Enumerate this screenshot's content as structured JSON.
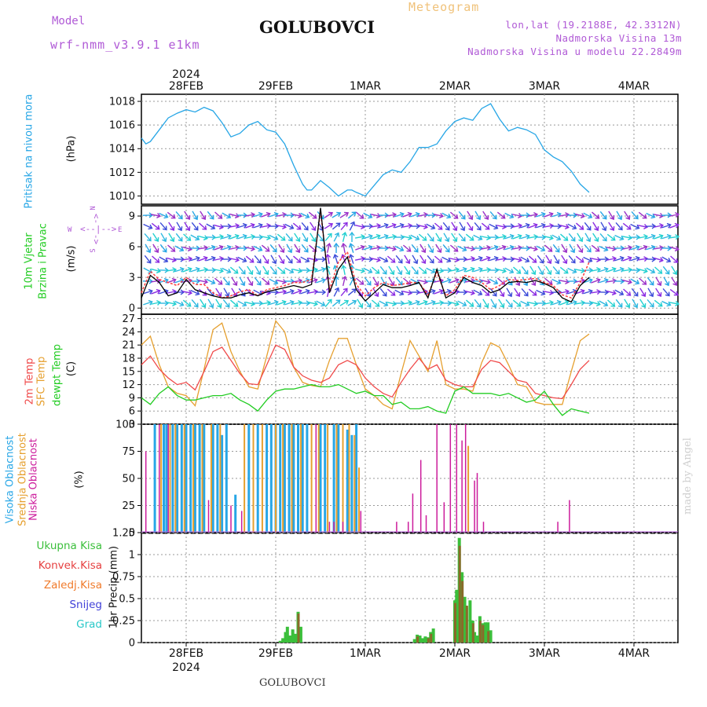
{
  "header": {
    "model_label": "Model",
    "model_run": "wrf-nmm_v3.9.1 e1km",
    "station": "GOLUBOVCI",
    "product": "Meteogram",
    "coords": "lon,lat (19.2188E, 42.3312N)",
    "elevation": "Nadmorska Visina 13m",
    "model_elevation": "Nadmorska Visina u modelu 22.2849m"
  },
  "footer": {
    "station": "GOLUBOVCI",
    "credit": "made by Angel"
  },
  "colors": {
    "pressure": "#27a6e6",
    "wind_speed": "#000000",
    "wind_gust": "#ff3e3e",
    "temp_2m": "#f04a4a",
    "temp_sfc": "#e6a02f",
    "dewpoint": "#22cc22",
    "cloud_high": "#27a6e6",
    "cloud_mid": "#e6a02f",
    "cloud_low": "#cc1c9c",
    "precip_total": "#3bbf3b",
    "precip_conv": "#e64040",
    "precip_frozen": "#f07a2a",
    "snow": "#4040d8",
    "graupel": "#28c8c8"
  },
  "chart_data": [
    {
      "type": "line",
      "panel": "pressure",
      "labels": {
        "name": "Pritisak na nivou mora",
        "unit": "(hPa)"
      },
      "x_ticks": [
        "28FEB",
        "29FEB",
        "1MAR",
        "2MAR",
        "3MAR",
        "4MAR"
      ],
      "x_year": "2024",
      "ylim": [
        1009.3,
        1018.6
      ],
      "y_ticks": [
        1010,
        1012,
        1014,
        1016,
        1018
      ],
      "x": [
        -0.5,
        -0.45,
        -0.4,
        -0.3,
        -0.2,
        -0.1,
        0,
        0.1,
        0.2,
        0.3,
        0.4,
        0.5,
        0.6,
        0.7,
        0.8,
        0.9,
        1.0,
        1.1,
        1.2,
        1.3,
        1.35,
        1.4,
        1.5,
        1.6,
        1.7,
        1.8,
        1.85,
        1.9,
        2.0,
        2.1,
        2.2,
        2.3,
        2.4,
        2.5,
        2.6,
        2.7,
        2.8,
        2.9,
        3.0,
        3.1,
        3.2,
        3.3,
        3.4,
        3.5,
        3.6,
        3.7,
        3.8,
        3.9,
        4.0,
        4.1,
        4.2,
        4.3,
        4.4,
        4.5
      ],
      "series": [
        {
          "values": [
            1014.9,
            1014.4,
            1014.6,
            1015.6,
            1016.6,
            1017.0,
            1017.3,
            1017.1,
            1017.5,
            1017.2,
            1016.2,
            1015.0,
            1015.3,
            1016.0,
            1016.3,
            1015.6,
            1015.4,
            1014.4,
            1012.6,
            1011.0,
            1010.5,
            1010.5,
            1011.3,
            1010.7,
            1010.0,
            1010.5,
            1010.5,
            1010.3,
            1010.0,
            1010.9,
            1011.8,
            1012.2,
            1012.0,
            1012.9,
            1014.1,
            1014.1,
            1014.4,
            1015.5,
            1016.3,
            1016.6,
            1016.4,
            1017.4,
            1017.8,
            1016.5,
            1015.5,
            1015.8,
            1015.6,
            1015.2,
            1013.9,
            1013.3,
            1012.9,
            1012.1,
            1011.0,
            1010.3
          ]
        }
      ]
    },
    {
      "type": "line",
      "panel": "wind",
      "labels": {
        "name": "10m Vjetar",
        "name2": "Brzina i Pravac",
        "unit": "(m/s)"
      },
      "compass": {
        "n": "N",
        "s": "S",
        "e": "E",
        "w": "W"
      },
      "ylim": [
        -0.6,
        10.0
      ],
      "y_ticks": [
        0,
        3,
        6,
        9
      ],
      "x": [
        -0.5,
        -0.4,
        -0.3,
        -0.2,
        -0.1,
        0,
        0.1,
        0.2,
        0.3,
        0.4,
        0.5,
        0.6,
        0.7,
        0.8,
        0.9,
        1.0,
        1.1,
        1.2,
        1.3,
        1.4,
        1.5,
        1.6,
        1.7,
        1.8,
        1.9,
        2.0,
        2.1,
        2.2,
        2.3,
        2.4,
        2.5,
        2.6,
        2.7,
        2.8,
        2.9,
        3.0,
        3.1,
        3.2,
        3.3,
        3.4,
        3.5,
        3.6,
        3.7,
        3.8,
        3.9,
        4.0,
        4.1,
        4.2,
        4.3,
        4.4,
        4.5
      ],
      "series": [
        {
          "name": "speed",
          "values": [
            1.0,
            3.2,
            2.5,
            1.2,
            1.5,
            2.8,
            1.8,
            1.5,
            1.2,
            1.0,
            1.0,
            1.3,
            1.5,
            1.2,
            1.6,
            1.8,
            2.0,
            2.2,
            2.0,
            2.3,
            9.8,
            1.5,
            3.8,
            5.0,
            1.8,
            0.7,
            1.5,
            2.3,
            2.0,
            2.0,
            2.2,
            2.5,
            1.0,
            3.8,
            1.0,
            1.5,
            3.0,
            2.5,
            2.2,
            1.5,
            1.8,
            2.5,
            2.6,
            2.5,
            2.7,
            2.4,
            2.0,
            1.0,
            0.6,
            2.2,
            3.0
          ]
        },
        {
          "name": "gust",
          "values": [
            1.5,
            3.6,
            2.8,
            2.5,
            2.2,
            3.0,
            2.3,
            2.3,
            1.5,
            1.0,
            1.2,
            1.6,
            1.8,
            1.2,
            1.8,
            2.0,
            2.2,
            2.5,
            2.5,
            2.8,
            9.5,
            1.8,
            4.5,
            5.5,
            2.3,
            1.2,
            2.0,
            2.5,
            2.2,
            2.3,
            2.5,
            2.5,
            1.3,
            3.5,
            1.2,
            1.8,
            3.2,
            3.0,
            2.5,
            1.8,
            2.2,
            2.8,
            2.7,
            2.8,
            2.9,
            2.5,
            2.2,
            1.3,
            1.0,
            2.5,
            4.5
          ]
        }
      ]
    },
    {
      "type": "line",
      "panel": "temperature",
      "labels": {
        "t2m": "2m Temp",
        "tsfc": "SFC Temp",
        "td": "dewpt Temp",
        "unit": "(C)"
      },
      "ylim": [
        3,
        28
      ],
      "y_ticks": [
        3,
        6,
        9,
        12,
        15,
        18,
        21,
        24,
        27
      ],
      "x": [
        -0.5,
        -0.4,
        -0.3,
        -0.2,
        -0.1,
        0,
        0.1,
        0.2,
        0.3,
        0.4,
        0.5,
        0.6,
        0.7,
        0.8,
        0.9,
        1.0,
        1.1,
        1.2,
        1.3,
        1.4,
        1.5,
        1.6,
        1.7,
        1.8,
        1.9,
        2.0,
        2.1,
        2.2,
        2.3,
        2.4,
        2.5,
        2.6,
        2.7,
        2.8,
        2.9,
        3.0,
        3.1,
        3.2,
        3.3,
        3.4,
        3.5,
        3.6,
        3.7,
        3.8,
        3.9,
        4.0,
        4.1,
        4.2,
        4.3,
        4.4,
        4.5
      ],
      "series": [
        {
          "name": "2m Temp",
          "values": [
            16.5,
            18.5,
            15.5,
            13.5,
            12.0,
            12.5,
            10.8,
            15.0,
            19.5,
            20.5,
            17.5,
            14.5,
            12.2,
            12.0,
            16.5,
            21.0,
            20.0,
            16.0,
            14.0,
            13.0,
            12.5,
            13.5,
            16.5,
            17.5,
            16.5,
            13.5,
            11.5,
            10.0,
            9.2,
            12.5,
            15.5,
            18.0,
            15.5,
            16.5,
            13.0,
            12.0,
            11.5,
            11.5,
            15.5,
            17.5,
            17.0,
            15.0,
            13.0,
            12.5,
            10.0,
            9.5,
            9.0,
            8.8,
            12.0,
            15.5,
            17.5
          ]
        },
        {
          "name": "SFC Temp",
          "values": [
            21.0,
            23.0,
            16.5,
            11.5,
            10.0,
            9.5,
            7.2,
            15.5,
            24.5,
            26.0,
            19.5,
            15.0,
            11.5,
            11.0,
            18.5,
            26.5,
            24.0,
            16.0,
            12.5,
            11.8,
            11.5,
            17.5,
            22.5,
            22.5,
            16.5,
            11.0,
            9.5,
            7.5,
            6.5,
            14.5,
            22.0,
            18.5,
            15.0,
            22.0,
            12.0,
            11.0,
            11.0,
            10.5,
            17.0,
            21.5,
            20.5,
            16.5,
            12.0,
            11.5,
            8.0,
            7.5,
            7.5,
            7.5,
            15.0,
            22.0,
            23.5
          ]
        },
        {
          "name": "dewpt Temp",
          "values": [
            9.0,
            7.5,
            10.0,
            11.5,
            9.5,
            8.5,
            8.5,
            9.0,
            9.5,
            9.5,
            10.0,
            8.5,
            7.5,
            6.0,
            8.5,
            10.5,
            11.0,
            11.0,
            11.5,
            12.0,
            11.5,
            11.5,
            12.0,
            11.0,
            10.0,
            10.5,
            9.5,
            9.5,
            7.5,
            8.0,
            6.5,
            6.5,
            7.0,
            6.0,
            5.5,
            10.5,
            11.5,
            10.0,
            10.0,
            10.0,
            9.5,
            10.0,
            9.0,
            8.0,
            8.5,
            10.5,
            7.5,
            5.0,
            6.5,
            6.0,
            5.5
          ]
        }
      ]
    },
    {
      "type": "bar",
      "panel": "clouds",
      "labels": {
        "high": "Visoka Oblacnost",
        "mid": "Srednja Oblacnost",
        "low": "Niska Oblacnost",
        "unit": "(%)"
      },
      "ylim": [
        0,
        100
      ],
      "y_ticks": [
        0,
        25,
        50,
        75,
        100
      ],
      "series": [
        {
          "name": "high",
          "x": [
            -0.35,
            -0.25,
            -0.22,
            -0.15,
            -0.1,
            -0.05,
            0.0,
            0.05,
            0.1,
            0.15,
            0.2,
            0.3,
            0.35,
            0.4,
            0.45,
            0.55,
            0.7,
            0.8,
            0.9,
            0.95,
            1.0,
            1.05,
            1.1,
            1.15,
            1.2,
            1.25,
            1.3,
            1.35,
            1.5,
            1.55,
            1.65,
            1.7,
            1.8,
            1.85,
            1.9,
            2.3,
            2.5,
            2.6,
            2.7,
            2.8,
            2.85,
            2.9,
            3.0,
            3.05,
            3.1,
            3.2,
            3.3,
            3.4,
            3.5,
            3.6,
            3.7,
            3.8,
            3.9,
            4.0
          ],
          "values": [
            100,
            100,
            100,
            100,
            100,
            100,
            100,
            100,
            100,
            100,
            100,
            100,
            100,
            90,
            100,
            35,
            100,
            100,
            100,
            100,
            100,
            100,
            100,
            100,
            100,
            100,
            100,
            100,
            100,
            100,
            100,
            100,
            95,
            90,
            100,
            0,
            0,
            0,
            0,
            0,
            0,
            0,
            0,
            0,
            0,
            0,
            0,
            0,
            0,
            0,
            0,
            0,
            0,
            0
          ]
        },
        {
          "name": "mid",
          "x": [
            -0.28,
            -0.18,
            -0.12,
            -0.02,
            0.08,
            0.18,
            0.28,
            0.38,
            0.65,
            0.75,
            0.85,
            1.0,
            1.08,
            1.18,
            1.28,
            1.4,
            1.48,
            1.58,
            1.68,
            1.75,
            1.82,
            1.88,
            1.93,
            3.15
          ],
          "values": [
            100,
            100,
            100,
            100,
            100,
            100,
            100,
            100,
            100,
            100,
            100,
            100,
            100,
            100,
            100,
            100,
            100,
            100,
            100,
            100,
            100,
            90,
            60,
            80
          ]
        },
        {
          "name": "low",
          "x": [
            -0.45,
            -0.3,
            -0.2,
            0.25,
            0.5,
            0.62,
            1.45,
            1.6,
            1.65,
            1.75,
            1.95,
            2.35,
            2.48,
            2.53,
            2.62,
            2.68,
            2.8,
            2.88,
            2.95,
            3.02,
            3.08,
            3.12,
            3.22,
            3.25,
            3.32,
            4.15,
            4.28
          ],
          "values": [
            75,
            100,
            100,
            30,
            25,
            20,
            100,
            10,
            10,
            10,
            20,
            10,
            10,
            36,
            67,
            16,
            100,
            28,
            100,
            100,
            85,
            100,
            48,
            55,
            10,
            10,
            30
          ]
        }
      ]
    },
    {
      "type": "bar",
      "panel": "precipitation",
      "labels": {
        "total": "Ukupna Kisa",
        "conv": "Konvek.Kisa",
        "frozen": "Zaledj.Kisa",
        "snow": "Snijeg",
        "graupel": "Grad",
        "unit": "1hr Precip (mm)"
      },
      "ylim": [
        0,
        1.25
      ],
      "y_ticks": [
        0,
        0.25,
        0.5,
        0.75,
        1,
        1.25
      ],
      "series": [
        {
          "name": "total",
          "x": [
            1.05,
            1.08,
            1.11,
            1.13,
            1.16,
            1.19,
            1.22,
            1.25,
            1.28,
            2.55,
            2.58,
            2.61,
            2.64,
            2.67,
            2.7,
            2.73,
            2.76,
            3.0,
            3.02,
            3.05,
            3.08,
            3.11,
            3.13,
            3.17,
            3.2,
            3.22,
            3.25,
            3.28,
            3.31,
            3.34,
            3.37,
            3.4
          ],
          "values": [
            0.02,
            0.05,
            0.12,
            0.18,
            0.08,
            0.15,
            0.1,
            0.35,
            0.18,
            0.04,
            0.09,
            0.08,
            0.05,
            0.07,
            0.06,
            0.12,
            0.16,
            0.48,
            0.6,
            1.19,
            0.8,
            0.52,
            0.4,
            0.48,
            0.25,
            0.12,
            0.08,
            0.3,
            0.22,
            0.23,
            0.23,
            0.14
          ]
        },
        {
          "name": "convective",
          "x": [
            1.25,
            2.58,
            2.7,
            2.73,
            3.0,
            3.05,
            3.08,
            3.13,
            3.2,
            3.28,
            3.31,
            3.37
          ],
          "values": [
            0.33,
            0.07,
            0.05,
            0.1,
            0.45,
            1.1,
            0.7,
            0.42,
            0.22,
            0.25,
            0.2,
            0.13
          ]
        }
      ]
    }
  ]
}
